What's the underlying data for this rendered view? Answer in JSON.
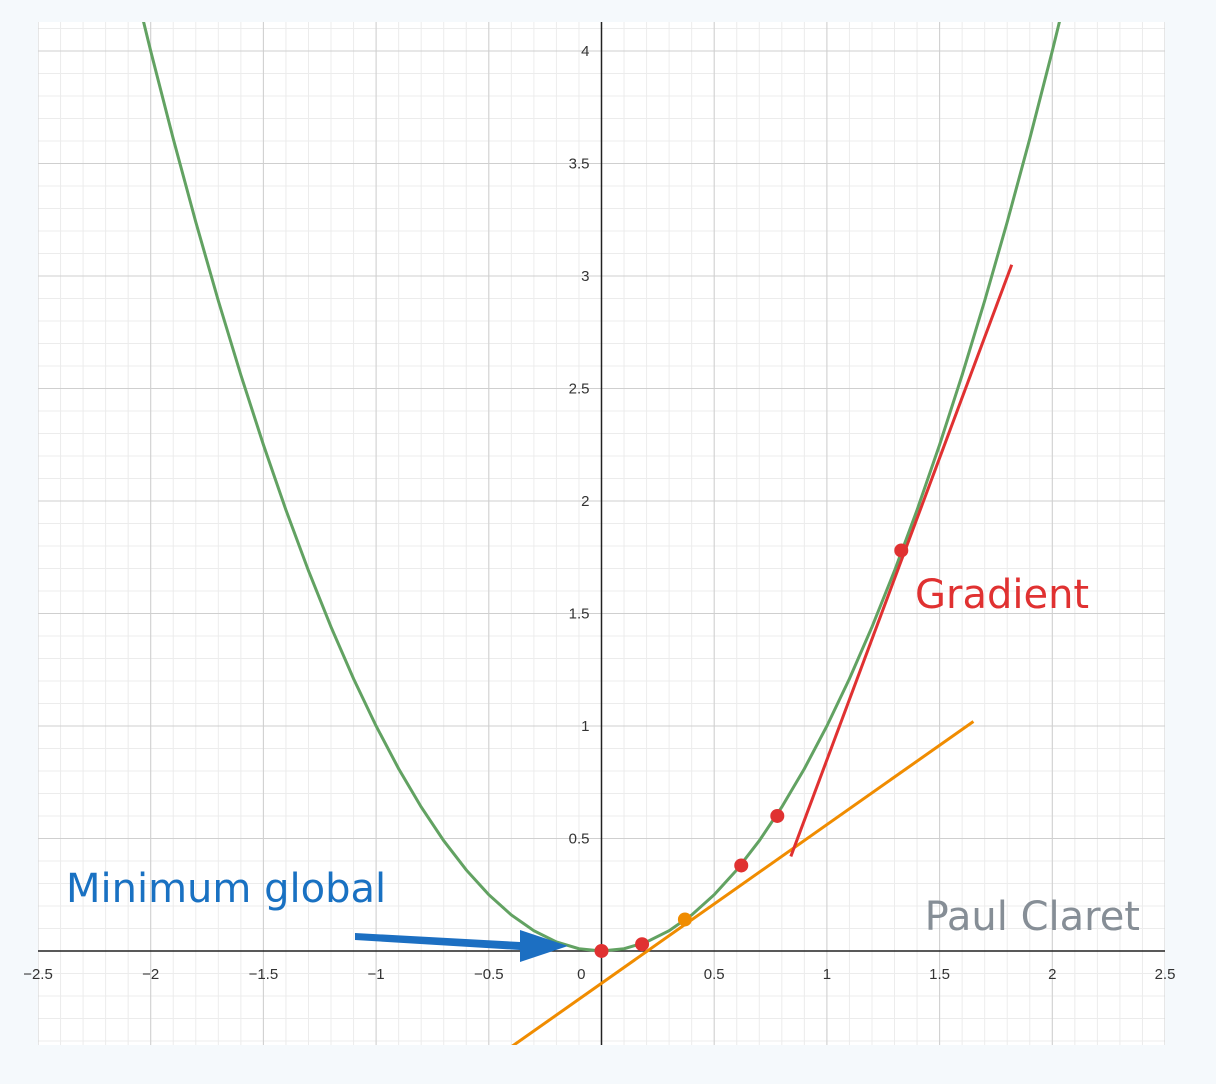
{
  "chart_data": {
    "type": "function-plot",
    "xlim": [
      -2.5,
      2.5
    ],
    "ylim": [
      -0.418,
      4.129
    ],
    "xticks": [
      {
        "value": -2.5,
        "label": "−2.5"
      },
      {
        "value": -2,
        "label": "−2"
      },
      {
        "value": -1.5,
        "label": "−1.5"
      },
      {
        "value": -1,
        "label": "−1"
      },
      {
        "value": -0.5,
        "label": "−0.5"
      },
      0,
      0.5,
      1,
      1.5,
      2,
      2.5
    ],
    "yticks": [
      0.5,
      1,
      1.5,
      2,
      2.5,
      3,
      3.5,
      4
    ],
    "grid": true,
    "minor_grid_step": 0.1,
    "series": [
      {
        "style": "line",
        "color": "#62a262",
        "x": [
          -2.1,
          -2,
          -1.9,
          -1.8,
          -1.7,
          -1.6,
          -1.5,
          -1.4,
          -1.3,
          -1.2,
          -1.1,
          -1,
          -0.9,
          -0.8,
          -0.7,
          -0.6,
          -0.5,
          -0.4,
          -0.3,
          -0.2,
          -0.1,
          0,
          0.1,
          0.2,
          0.3,
          0.4,
          0.5,
          0.6,
          0.7,
          0.8,
          0.9,
          1,
          1.1,
          1.2,
          1.3,
          1.4,
          1.5,
          1.6,
          1.7,
          1.8,
          1.9,
          2,
          2.1
        ],
        "values": [
          4.41,
          4,
          3.61,
          3.24,
          2.89,
          2.56,
          2.25,
          1.96,
          1.69,
          1.44,
          1.21,
          1,
          0.81,
          0.64,
          0.49,
          0.36,
          0.25,
          0.16,
          0.09,
          0.04,
          0.01,
          0,
          0.01,
          0.04,
          0.09,
          0.16,
          0.25,
          0.36,
          0.49,
          0.64,
          0.81,
          1,
          1.21,
          1.44,
          1.69,
          1.96,
          2.25,
          2.56,
          2.89,
          3.24,
          3.61,
          4,
          4.41
        ]
      },
      {
        "style": "line",
        "color": "#f08c00",
        "x": [
          -0.42,
          1.65
        ],
        "values": [
          -0.44,
          1.02
        ]
      },
      {
        "style": "line",
        "color": "#e03131",
        "x": [
          0.84,
          1.82
        ],
        "values": [
          0.42,
          3.05
        ]
      },
      {
        "style": "points",
        "color": "#e03131",
        "x": [
          0,
          0.18,
          0.62,
          0.78,
          1.33
        ],
        "values": [
          0,
          0.03,
          0.38,
          0.6,
          1.78
        ]
      },
      {
        "style": "points",
        "color": "#f08c00",
        "x": [
          0.37
        ],
        "values": [
          0.14
        ]
      }
    ],
    "annotations": [
      {
        "text": "Minimum global",
        "color": "#1971c2"
      },
      {
        "text": "Gradient",
        "color": "#e03131"
      },
      {
        "text": "Paul Claret",
        "color": "#868e96"
      }
    ]
  }
}
